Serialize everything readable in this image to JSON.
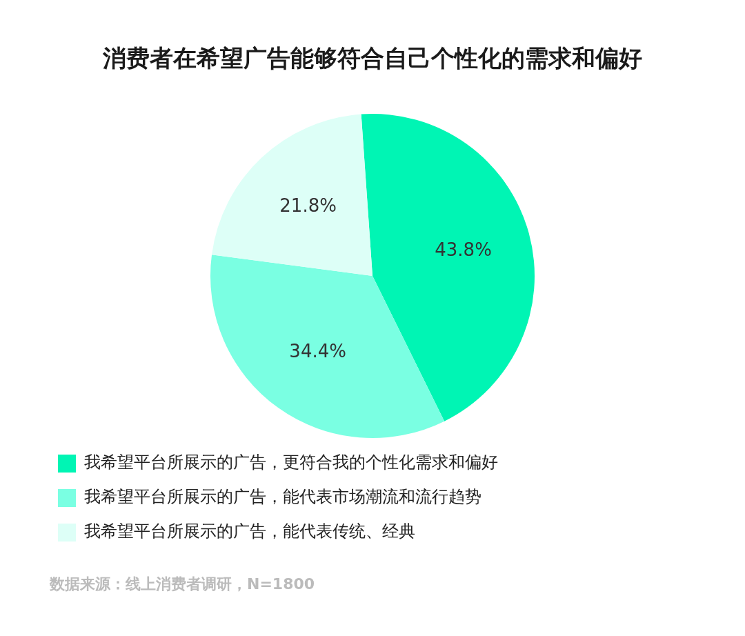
{
  "chart_data": {
    "type": "pie",
    "title": "消费者在希望广告能够符合自己个性化的需求和偏好",
    "categories": [
      "我希望平台所展示的广告，更符合我的个性化需求和偏好",
      "我希望平台所展示的广告，能代表市场潮流和流行趋势",
      "我希望平台所展示的广告，能代表传统、经典"
    ],
    "values": [
      43.8,
      34.4,
      21.8
    ],
    "colors": [
      "#00f5b4",
      "#7affe2",
      "#ddfff7"
    ],
    "value_labels": [
      "43.8%",
      "34.4%",
      "21.8%"
    ],
    "legend": "bottom",
    "annotations": [
      "数据来源：线上消费者调研，N=1800"
    ]
  }
}
